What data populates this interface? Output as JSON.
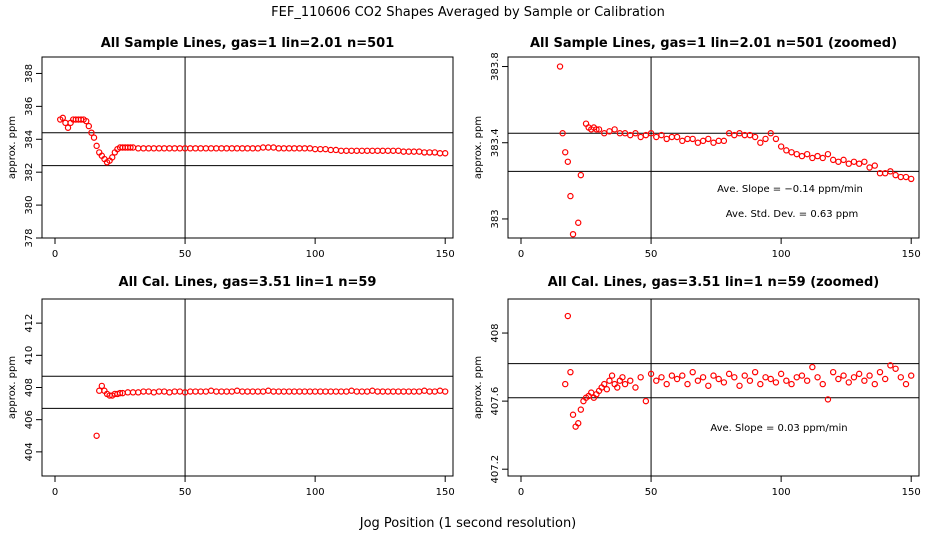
{
  "suptitle": "FEF_110606  CO2 Shapes Averaged by Sample or Calibration",
  "supxlabel": "Jog Position (1 second resolution)",
  "colors": {
    "points": "#ff0000",
    "axes": "#000000"
  },
  "chart_data": [
    {
      "id": "p1",
      "type": "scatter",
      "title": "All Sample Lines, gas=1 lin=2.01 n=501",
      "ylabel": "approx. ppm",
      "xlim": [
        -5,
        153
      ],
      "ylim": [
        378,
        389
      ],
      "xticks": [
        0,
        50,
        100,
        150
      ],
      "yticks": [
        378,
        380,
        382,
        384,
        386,
        388
      ],
      "vline": 50,
      "hlines": [
        384.4,
        382.4
      ],
      "x": [
        2,
        3,
        4,
        5,
        6,
        7,
        8,
        9,
        10,
        11,
        12,
        13,
        14,
        15,
        16,
        17,
        18,
        19,
        20,
        21,
        22,
        23,
        24,
        25,
        26,
        27,
        28,
        29,
        30,
        32,
        34,
        36,
        38,
        40,
        42,
        44,
        46,
        48,
        50,
        52,
        54,
        56,
        58,
        60,
        62,
        64,
        66,
        68,
        70,
        72,
        74,
        76,
        78,
        80,
        82,
        84,
        86,
        88,
        90,
        92,
        94,
        96,
        98,
        100,
        102,
        104,
        106,
        108,
        110,
        112,
        114,
        116,
        118,
        120,
        122,
        124,
        126,
        128,
        130,
        132,
        134,
        136,
        138,
        140,
        142,
        144,
        146,
        148,
        150
      ],
      "y": [
        385.2,
        385.3,
        385.0,
        384.7,
        385.0,
        385.2,
        385.2,
        385.2,
        385.2,
        385.2,
        385.1,
        384.8,
        384.4,
        384.1,
        383.6,
        383.2,
        383.0,
        382.8,
        382.6,
        382.7,
        382.9,
        383.2,
        383.4,
        383.5,
        383.5,
        383.5,
        383.5,
        383.5,
        383.5,
        383.45,
        383.45,
        383.45,
        383.45,
        383.45,
        383.45,
        383.45,
        383.45,
        383.45,
        383.45,
        383.45,
        383.45,
        383.45,
        383.45,
        383.45,
        383.45,
        383.45,
        383.45,
        383.45,
        383.45,
        383.45,
        383.45,
        383.45,
        383.45,
        383.5,
        383.5,
        383.5,
        383.45,
        383.45,
        383.45,
        383.45,
        383.45,
        383.45,
        383.45,
        383.4,
        383.4,
        383.4,
        383.35,
        383.35,
        383.3,
        383.3,
        383.3,
        383.3,
        383.3,
        383.3,
        383.3,
        383.3,
        383.3,
        383.3,
        383.3,
        383.3,
        383.25,
        383.25,
        383.25,
        383.25,
        383.2,
        383.2,
        383.2,
        383.15,
        383.15
      ],
      "annotations": []
    },
    {
      "id": "p2",
      "type": "scatter",
      "title": "All Sample Lines, gas=1 lin=2.01 n=501 (zoomed)",
      "ylabel": "approx. ppm",
      "xlim": [
        -5,
        153
      ],
      "ylim": [
        382.9,
        383.85
      ],
      "xticks": [
        0,
        50,
        100,
        150
      ],
      "yticks": [
        383.0,
        383.4,
        383.8
      ],
      "vline": 50,
      "hlines": [
        383.45,
        383.25
      ],
      "x": [
        15,
        16,
        17,
        18,
        19,
        20,
        22,
        23,
        25,
        26,
        27,
        28,
        29,
        30,
        32,
        34,
        36,
        38,
        40,
        42,
        44,
        46,
        48,
        50,
        52,
        54,
        56,
        58,
        60,
        62,
        64,
        66,
        68,
        70,
        72,
        74,
        76,
        78,
        80,
        82,
        84,
        86,
        88,
        90,
        92,
        94,
        96,
        98,
        100,
        102,
        104,
        106,
        108,
        110,
        112,
        114,
        116,
        118,
        120,
        122,
        124,
        126,
        128,
        130,
        132,
        134,
        136,
        138,
        140,
        142,
        144,
        146,
        148,
        150
      ],
      "y": [
        383.8,
        383.45,
        383.35,
        383.3,
        383.12,
        382.92,
        382.98,
        383.23,
        383.5,
        383.48,
        383.47,
        383.48,
        383.47,
        383.47,
        383.45,
        383.46,
        383.47,
        383.45,
        383.45,
        383.44,
        383.45,
        383.43,
        383.44,
        383.45,
        383.43,
        383.44,
        383.42,
        383.43,
        383.43,
        383.41,
        383.42,
        383.42,
        383.4,
        383.41,
        383.42,
        383.4,
        383.41,
        383.41,
        383.45,
        383.44,
        383.45,
        383.44,
        383.44,
        383.43,
        383.4,
        383.42,
        383.45,
        383.42,
        383.38,
        383.36,
        383.35,
        383.34,
        383.33,
        383.34,
        383.32,
        383.33,
        383.32,
        383.34,
        383.31,
        383.3,
        383.31,
        383.29,
        383.3,
        383.29,
        383.3,
        383.27,
        383.28,
        383.24,
        383.24,
        383.25,
        383.23,
        383.22,
        383.22,
        383.21
      ],
      "annotations": [
        "Ave. Slope =  −0.14  ppm/min",
        "Ave. Std. Dev. =  0.63  ppm"
      ]
    },
    {
      "id": "p3",
      "type": "scatter",
      "title": "All Cal. Lines, gas=3.51 lin=1 n=59",
      "ylabel": "approx. ppm",
      "xlim": [
        -5,
        153
      ],
      "ylim": [
        402.5,
        413.5
      ],
      "xticks": [
        0,
        50,
        100,
        150
      ],
      "yticks": [
        404,
        406,
        408,
        410,
        412
      ],
      "vline": 50,
      "hlines": [
        408.7,
        406.7
      ],
      "x": [
        16,
        17,
        18,
        19,
        20,
        21,
        22,
        23,
        24,
        25,
        26,
        28,
        30,
        32,
        34,
        36,
        38,
        40,
        42,
        44,
        46,
        48,
        50,
        52,
        54,
        56,
        58,
        60,
        62,
        64,
        66,
        68,
        70,
        72,
        74,
        76,
        78,
        80,
        82,
        84,
        86,
        88,
        90,
        92,
        94,
        96,
        98,
        100,
        102,
        104,
        106,
        108,
        110,
        112,
        114,
        116,
        118,
        120,
        122,
        124,
        126,
        128,
        130,
        132,
        134,
        136,
        138,
        140,
        142,
        144,
        146,
        148,
        150
      ],
      "y": [
        405.0,
        407.8,
        408.1,
        407.8,
        407.6,
        407.5,
        407.5,
        407.6,
        407.6,
        407.65,
        407.65,
        407.7,
        407.7,
        407.7,
        407.75,
        407.75,
        407.7,
        407.75,
        407.75,
        407.7,
        407.75,
        407.75,
        407.7,
        407.75,
        407.75,
        407.75,
        407.75,
        407.8,
        407.75,
        407.75,
        407.75,
        407.75,
        407.8,
        407.75,
        407.75,
        407.75,
        407.75,
        407.75,
        407.8,
        407.75,
        407.75,
        407.75,
        407.75,
        407.75,
        407.75,
        407.75,
        407.75,
        407.75,
        407.75,
        407.75,
        407.75,
        407.75,
        407.75,
        407.75,
        407.8,
        407.75,
        407.75,
        407.75,
        407.8,
        407.75,
        407.75,
        407.75,
        407.75,
        407.75,
        407.75,
        407.75,
        407.75,
        407.75,
        407.8,
        407.75,
        407.75,
        407.8,
        407.75
      ],
      "annotations": []
    },
    {
      "id": "p4",
      "type": "scatter",
      "title": "All Cal. Lines, gas=3.51 lin=1 n=59 (zoomed)",
      "ylabel": "approx. ppm",
      "xlim": [
        -5,
        153
      ],
      "ylim": [
        407.16,
        408.2
      ],
      "xticks": [
        0,
        50,
        100,
        150
      ],
      "yticks": [
        407.2,
        407.6,
        408.0
      ],
      "vline": 50,
      "hlines": [
        407.82,
        407.62
      ],
      "x": [
        17,
        18,
        19,
        20,
        21,
        22,
        23,
        24,
        25,
        26,
        27,
        28,
        29,
        30,
        31,
        32,
        33,
        34,
        35,
        36,
        37,
        38,
        39,
        40,
        42,
        44,
        46,
        48,
        50,
        52,
        54,
        56,
        58,
        60,
        62,
        64,
        66,
        68,
        70,
        72,
        74,
        76,
        78,
        80,
        82,
        84,
        86,
        88,
        90,
        92,
        94,
        96,
        98,
        100,
        102,
        104,
        106,
        108,
        110,
        112,
        114,
        116,
        118,
        120,
        122,
        124,
        126,
        128,
        130,
        132,
        134,
        136,
        138,
        140,
        142,
        144,
        146,
        148,
        150
      ],
      "y": [
        407.7,
        408.1,
        407.77,
        407.52,
        407.45,
        407.47,
        407.55,
        407.6,
        407.62,
        407.63,
        407.65,
        407.62,
        407.64,
        407.66,
        407.68,
        407.7,
        407.67,
        407.72,
        407.75,
        407.7,
        407.68,
        407.72,
        407.74,
        407.7,
        407.72,
        407.68,
        407.74,
        407.6,
        407.76,
        407.72,
        407.74,
        407.7,
        407.75,
        407.73,
        407.75,
        407.7,
        407.77,
        407.72,
        407.74,
        407.69,
        407.75,
        407.73,
        407.71,
        407.76,
        407.74,
        407.69,
        407.75,
        407.72,
        407.77,
        407.7,
        407.74,
        407.73,
        407.71,
        407.76,
        407.72,
        407.7,
        407.74,
        407.75,
        407.72,
        407.8,
        407.74,
        407.7,
        407.61,
        407.77,
        407.73,
        407.75,
        407.71,
        407.74,
        407.76,
        407.72,
        407.75,
        407.7,
        407.77,
        407.73,
        407.81,
        407.79,
        407.74,
        407.7,
        407.75
      ],
      "annotations": [
        "Ave. Slope =  0.03  ppm/min"
      ]
    }
  ]
}
